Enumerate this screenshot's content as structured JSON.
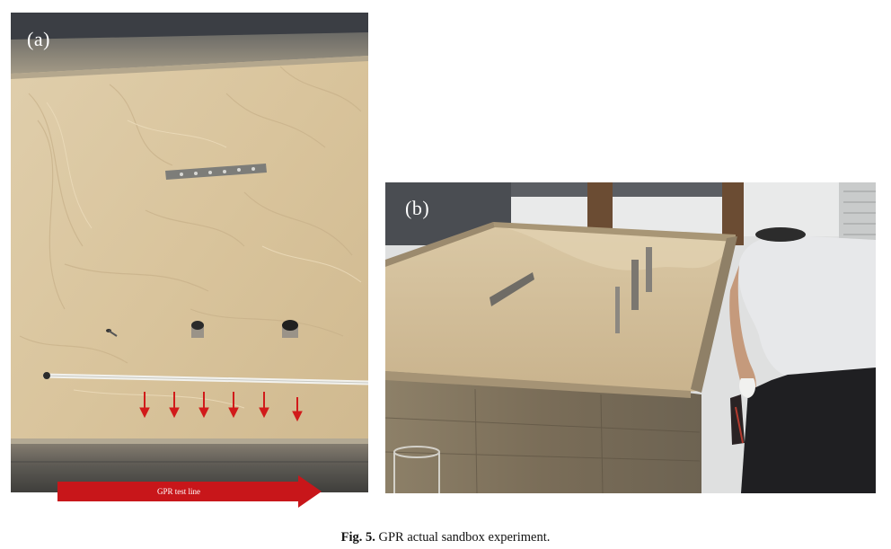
{
  "figure": {
    "panel_a": {
      "label": "(a)"
    },
    "panel_b": {
      "label": "(b)"
    },
    "test_line_label": "GPR test line",
    "marker_arrow_count": 6,
    "caption": {
      "label": "Fig. 5.",
      "text": "GPR actual sandbox experiment."
    }
  },
  "colors": {
    "sand": "#d9c59f",
    "wood": "#8a7a63",
    "arrow_red": "#d11a1a"
  }
}
